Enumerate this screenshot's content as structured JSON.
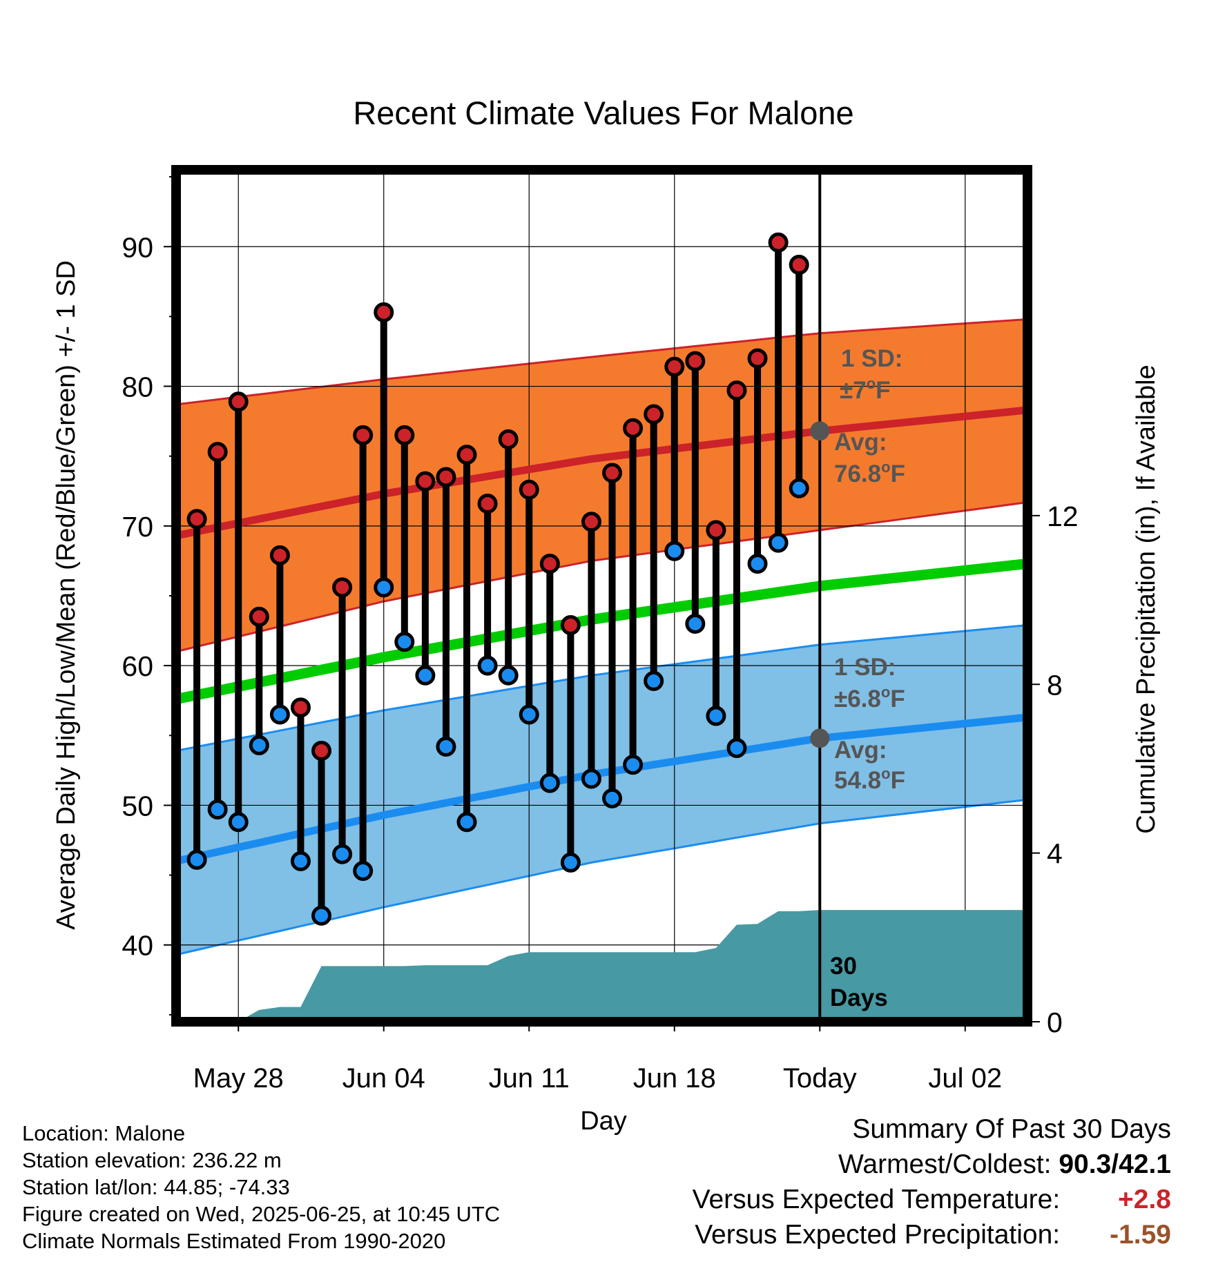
{
  "chart_data": {
    "type": "climate-range",
    "title": "Recent Climate Values For Malone",
    "xlabel": "Day",
    "ylabel": "Average Daily High/Low/Mean (Red/Blue/Green) +/- 1 SD",
    "y2label": "Cumulative Precipitation (in), If Available",
    "ylim": [
      34.5,
      95.5
    ],
    "y_ticks": [
      40,
      50,
      60,
      70,
      80,
      90
    ],
    "y2lim": [
      0,
      20.2
    ],
    "y2_ticks": [
      0,
      4,
      8,
      12
    ],
    "x_ticks": [
      "May 28",
      "Jun 04",
      "Jun 11",
      "Jun 18",
      "Today",
      "Jul 02"
    ],
    "x_range": [
      "2025-05-25",
      "2025-07-05"
    ],
    "grid": true,
    "today": "2025-06-25",
    "days": [
      "2025-05-26",
      "2025-05-27",
      "2025-05-28",
      "2025-05-29",
      "2025-05-30",
      "2025-05-31",
      "2025-06-01",
      "2025-06-02",
      "2025-06-03",
      "2025-06-04",
      "2025-06-05",
      "2025-06-06",
      "2025-06-07",
      "2025-06-08",
      "2025-06-09",
      "2025-06-10",
      "2025-06-11",
      "2025-06-12",
      "2025-06-13",
      "2025-06-14",
      "2025-06-15",
      "2025-06-16",
      "2025-06-17",
      "2025-06-18",
      "2025-06-19",
      "2025-06-20",
      "2025-06-21",
      "2025-06-22",
      "2025-06-23",
      "2025-06-24"
    ],
    "highs": [
      70.5,
      75.3,
      78.9,
      63.5,
      67.9,
      57.0,
      53.9,
      65.6,
      76.5,
      85.3,
      76.5,
      73.2,
      73.5,
      75.1,
      71.6,
      76.2,
      72.6,
      67.3,
      62.9,
      70.3,
      73.8,
      77.0,
      78.0,
      81.4,
      81.8,
      69.7,
      79.7,
      82.0,
      90.3,
      88.7
    ],
    "lows": [
      46.1,
      49.7,
      48.8,
      54.3,
      56.5,
      46.0,
      42.1,
      46.5,
      45.3,
      65.6,
      61.7,
      59.3,
      54.2,
      48.8,
      60.0,
      59.3,
      56.5,
      51.6,
      45.9,
      51.9,
      50.5,
      52.9,
      58.9,
      68.2,
      63.0,
      56.4,
      54.1,
      67.3,
      68.8,
      72.7
    ],
    "normal_high_band": {
      "x": [
        "2025-05-25",
        "2025-06-04",
        "2025-06-14",
        "2025-06-25",
        "2025-07-05"
      ],
      "mean": [
        69.3,
        72.3,
        74.8,
        76.8,
        78.3
      ],
      "upper": [
        78.7,
        80.5,
        82.1,
        83.8,
        84.8
      ],
      "lower": [
        61.0,
        64.6,
        67.5,
        69.7,
        71.7
      ]
    },
    "normal_mean": {
      "x": [
        "2025-05-25",
        "2025-06-04",
        "2025-06-14",
        "2025-06-25",
        "2025-07-05"
      ],
      "values": [
        57.6,
        60.6,
        63.3,
        65.7,
        67.3
      ]
    },
    "normal_low_band": {
      "x": [
        "2025-05-25",
        "2025-06-04",
        "2025-06-14",
        "2025-06-25",
        "2025-07-05"
      ],
      "mean": [
        46.0,
        49.3,
        52.2,
        54.8,
        56.3
      ],
      "upper": [
        53.9,
        56.8,
        59.3,
        61.5,
        62.9
      ],
      "lower": [
        39.3,
        42.7,
        45.9,
        48.7,
        50.4
      ]
    },
    "precip_cumulative": {
      "x": [
        "2025-05-25",
        "2025-05-26",
        "2025-05-27",
        "2025-05-28",
        "2025-05-29",
        "2025-05-30",
        "2025-05-31",
        "2025-06-01",
        "2025-06-02",
        "2025-06-03",
        "2025-06-04",
        "2025-06-05",
        "2025-06-06",
        "2025-06-07",
        "2025-06-08",
        "2025-06-09",
        "2025-06-10",
        "2025-06-11",
        "2025-06-12",
        "2025-06-13",
        "2025-06-14",
        "2025-06-15",
        "2025-06-16",
        "2025-06-17",
        "2025-06-18",
        "2025-06-19",
        "2025-06-20",
        "2025-06-21",
        "2025-06-22",
        "2025-06-23",
        "2025-06-24",
        "2025-06-25",
        "2025-07-05"
      ],
      "values": [
        0,
        0,
        0,
        0,
        0.28,
        0.35,
        0.35,
        1.32,
        1.32,
        1.32,
        1.32,
        1.32,
        1.34,
        1.34,
        1.34,
        1.34,
        1.56,
        1.65,
        1.65,
        1.65,
        1.65,
        1.65,
        1.65,
        1.65,
        1.65,
        1.65,
        1.75,
        2.3,
        2.32,
        2.62,
        2.62,
        2.65,
        2.65
      ]
    },
    "colors": {
      "high_band": "#f47b2e",
      "high_line": "#cc2229",
      "low_band": "#80bfe6",
      "low_line": "#1a8cf0",
      "mean_line": "#00cc00",
      "precip": "#4799a3",
      "high_marker": "#cc2229",
      "low_marker": "#1a8cf0",
      "annotation": "#555555"
    },
    "annotations": {
      "high_sd_label": "1 SD:",
      "high_sd_value": "±7°F",
      "high_avg_label": "Avg:",
      "high_avg_value": "76.8°F",
      "low_sd_label": "1 SD:",
      "low_sd_value": "±6.8°F",
      "low_avg_label": "Avg:",
      "low_avg_value": "54.8°F",
      "period_number": "30",
      "period_unit": "Days"
    }
  },
  "info": {
    "location": "Location: Malone",
    "elevation": "Station elevation: 236.22 m",
    "latlon": "Station lat/lon: 44.85; -74.33",
    "created": "Figure created on Wed, 2025-06-25, at 10:45 UTC",
    "normals": "Climate Normals Estimated From 1990-2020"
  },
  "summary": {
    "title": "Summary Of Past 30 Days",
    "warm_label": "Warmest/Coldest:",
    "warm_value": "90.3/42.1",
    "temp_label": "Versus Expected Temperature:",
    "temp_value": "+2.8",
    "precip_label": "Versus Expected Precipitation:",
    "precip_value": "-1.59"
  }
}
